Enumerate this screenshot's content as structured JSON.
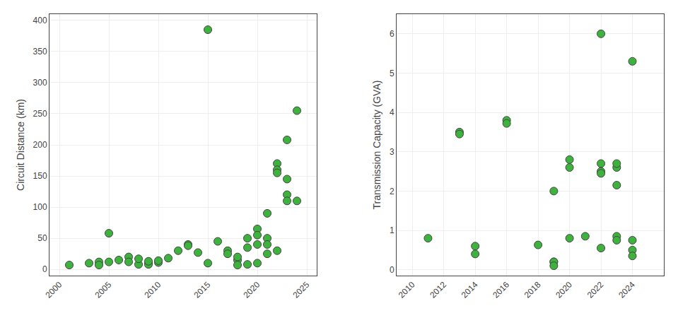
{
  "chart_data": [
    {
      "type": "scatter",
      "x": [
        2001,
        2003,
        2004,
        2004,
        2005,
        2005,
        2006,
        2007,
        2007,
        2008,
        2008,
        2009,
        2009,
        2009,
        2010,
        2010,
        2011,
        2012,
        2013,
        2013,
        2014,
        2015,
        2015,
        2016,
        2017,
        2017,
        2018,
        2018,
        2018,
        2019,
        2019,
        2019,
        2020,
        2020,
        2020,
        2020,
        2021,
        2021,
        2021,
        2021,
        2022,
        2022,
        2022,
        2022,
        2023,
        2023,
        2023,
        2023,
        2024,
        2024
      ],
      "values": [
        7,
        10,
        12,
        7,
        58,
        12,
        15,
        20,
        12,
        8,
        17,
        10,
        8,
        13,
        11,
        14,
        18,
        30,
        40,
        38,
        27,
        385,
        10,
        45,
        30,
        25,
        15,
        7,
        20,
        35,
        8,
        50,
        65,
        10,
        55,
        40,
        90,
        50,
        40,
        25,
        170,
        160,
        155,
        30,
        120,
        110,
        145,
        208,
        255,
        110
      ],
      "color": "#3db33d",
      "ylabel": "Circuit Distance (km)",
      "xlim": [
        1999,
        2026
      ],
      "ylim": [
        -10,
        410
      ],
      "xticks": [
        2000,
        2005,
        2010,
        2015,
        2020,
        2025
      ],
      "yticks": [
        0,
        50,
        100,
        150,
        200,
        250,
        300,
        350,
        400
      ],
      "grid": true
    },
    {
      "type": "scatter",
      "x": [
        2011,
        2013,
        2013,
        2014,
        2014,
        2016,
        2016,
        2018,
        2019,
        2019,
        2019,
        2019,
        2020,
        2020,
        2020,
        2021,
        2022,
        2022,
        2022,
        2022,
        2022,
        2023,
        2023,
        2023,
        2023,
        2023,
        2024,
        2024,
        2024,
        2024
      ],
      "values": [
        0.8,
        3.5,
        3.45,
        0.6,
        0.4,
        3.8,
        3.72,
        0.63,
        2.0,
        0.2,
        0.2,
        0.1,
        2.8,
        2.6,
        0.8,
        0.85,
        6.0,
        2.7,
        2.5,
        2.45,
        0.55,
        2.6,
        2.15,
        2.7,
        0.85,
        0.75,
        5.3,
        0.75,
        0.5,
        0.35
      ],
      "color": "#3db33d",
      "ylabel": "Transmission Capacity (GVA)",
      "xlim": [
        2009,
        2026
      ],
      "ylim": [
        -0.15,
        6.5
      ],
      "xticks": [
        2010,
        2012,
        2014,
        2016,
        2018,
        2020,
        2022,
        2024
      ],
      "yticks": [
        0,
        1,
        2,
        3,
        4,
        5,
        6
      ],
      "grid": true
    }
  ]
}
